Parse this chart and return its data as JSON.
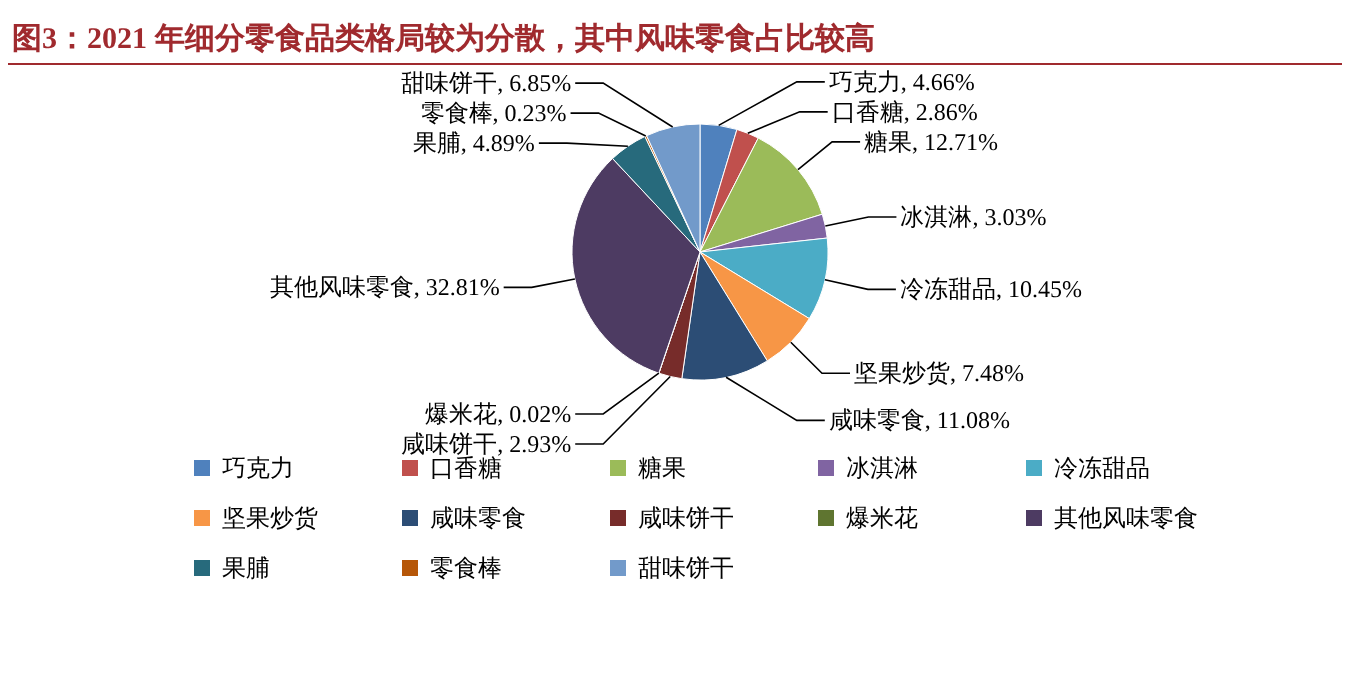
{
  "chart_data": {
    "type": "pie",
    "title": "图3：2021 年细分零食品类格局较为分散，其中风味零食占比较高",
    "categories": [
      "巧克力",
      "口香糖",
      "糖果",
      "冰淇淋",
      "冷冻甜品",
      "坚果炒货",
      "咸味零食",
      "咸味饼干",
      "爆米花",
      "其他风味零食",
      "果脯",
      "零食棒",
      "甜味饼干"
    ],
    "values": [
      4.66,
      2.86,
      12.71,
      3.03,
      10.45,
      7.48,
      11.08,
      2.93,
      0.02,
      32.81,
      4.89,
      0.23,
      6.85
    ],
    "colors": [
      "#4f81bd",
      "#c0504d",
      "#9bbb59",
      "#8064a2",
      "#4bacc6",
      "#f79646",
      "#2c4d75",
      "#772c2a",
      "#5f7530",
      "#4d3b62",
      "#276a7c",
      "#b65708",
      "#729aca"
    ],
    "value_labels": [
      "巧克力, 4.66%",
      "口香糖, 2.86%",
      "糖果, 12.71%",
      "冰淇淋, 3.03%",
      "冷冻甜品, 10.45%",
      "坚果炒货, 7.48%",
      "咸味零食, 11.08%",
      "咸味饼干, 2.93%",
      "爆米花, 0.02%",
      "其他风味零食, 32.81%",
      "果脯, 4.89%",
      "零食棒, 0.23%",
      "甜味饼干, 6.85%"
    ],
    "legend": "bottom"
  }
}
